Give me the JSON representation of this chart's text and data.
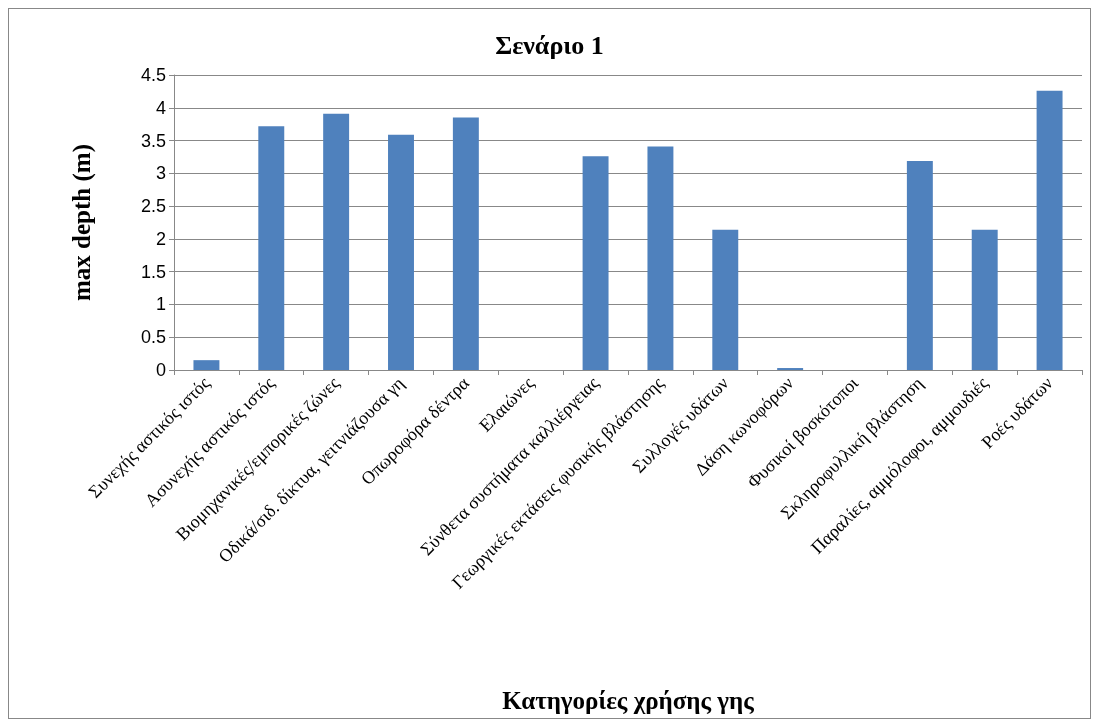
{
  "chart_data": {
    "type": "bar",
    "title": "Σενάριο 1",
    "xlabel": "Κατηγορίες χρήσης γης",
    "ylabel": "max depth (m)",
    "categories": [
      "Συνεχής αστικός ιστός",
      "Ασυνεχής αστικός ιστός",
      "Βιομηχανικές/εμπορικές ζώνες",
      "Οδικά/σιδ. δίκτυα, γειτνιάζουσα γη",
      "Οπωροφόρα δέντρα",
      "Ελαιώνες",
      "Σύνθετα συστήματα καλλιέργειας",
      "Γεωργικές εκτάσεις φυσικής βλάστησης",
      "Συλλογές υδάτων",
      "Δάση κωνοφόρων",
      "Φυσικοί βοσκότοποι",
      "Σκληροφυλλική βλάστηση",
      "Παραλίες, αμμόλοφοι, αμμουδιές",
      "Ροές υδάτων"
    ],
    "values": [
      0.15,
      3.72,
      3.91,
      3.59,
      3.85,
      0,
      3.26,
      3.41,
      2.14,
      0.03,
      0,
      3.19,
      2.14,
      4.26
    ],
    "color": "#4f81bd",
    "ylim": [
      0,
      4.5
    ],
    "yticks": [
      0,
      0.5,
      1,
      1.5,
      2,
      2.5,
      3,
      3.5,
      4,
      4.5
    ],
    "grid": "y"
  }
}
